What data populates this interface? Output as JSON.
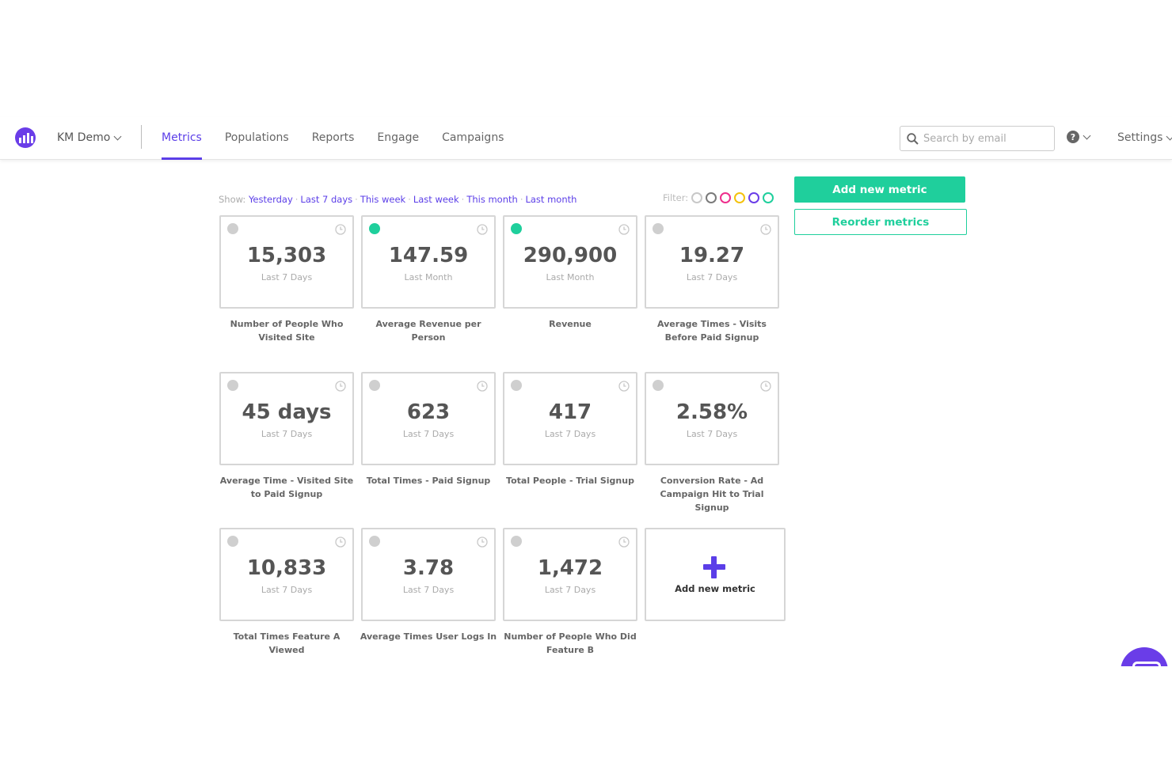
{
  "nav": {
    "account": "KM Demo",
    "tabs": [
      {
        "label": "Metrics"
      },
      {
        "label": "Populations"
      },
      {
        "label": "Reports"
      },
      {
        "label": "Engage"
      },
      {
        "label": "Campaigns"
      }
    ],
    "search_placeholder": "Search by email",
    "settings": "Settings"
  },
  "show": {
    "prefix": "Show:",
    "options": [
      "Yesterday",
      "Last 7 days",
      "This week",
      "Last week",
      "This month",
      "Last month"
    ]
  },
  "filter": {
    "label": "Filter:",
    "colors": [
      "#c8c8c8",
      "#7a7a7a",
      "#ee2e8c",
      "#f4c20d",
      "#6a3de8",
      "#1fcf9c"
    ]
  },
  "buttons": {
    "add_metric": "Add new metric",
    "reorder": "Reorder metrics"
  },
  "metrics": [
    {
      "value": "15,303",
      "period": "Last 7 Days",
      "label": "Number of People Who Visited Site",
      "dot": "gray"
    },
    {
      "value": "147.59",
      "period": "Last Month",
      "label": "Average Revenue per Person",
      "dot": "green"
    },
    {
      "value": "290,900",
      "period": "Last Month",
      "label": "Revenue",
      "dot": "green"
    },
    {
      "value": "19.27",
      "period": "Last 7 Days",
      "label": "Average Times - Visits Before Paid Signup",
      "dot": "gray"
    },
    {
      "value": "45 days",
      "period": "Last 7 Days",
      "label": "Average Time - Visited Site to Paid Signup",
      "dot": "gray"
    },
    {
      "value": "623",
      "period": "Last 7 Days",
      "label": "Total Times - Paid Signup",
      "dot": "gray"
    },
    {
      "value": "417",
      "period": "Last 7 Days",
      "label": "Total People - Trial Signup",
      "dot": "gray"
    },
    {
      "value": "2.58%",
      "period": "Last 7 Days",
      "label": "Conversion Rate - Ad Campaign Hit to Trial Signup",
      "dot": "gray"
    },
    {
      "value": "10,833",
      "period": "Last 7 Days",
      "label": "Total Times Feature A Viewed",
      "dot": "gray"
    },
    {
      "value": "3.78",
      "period": "Last 7 Days",
      "label": "Average Times User Logs In",
      "dot": "gray"
    },
    {
      "value": "1,472",
      "period": "Last 7 Days",
      "label": "Number of People Who Did Feature B",
      "dot": "gray"
    }
  ],
  "add_card": {
    "label": "Add new metric"
  }
}
